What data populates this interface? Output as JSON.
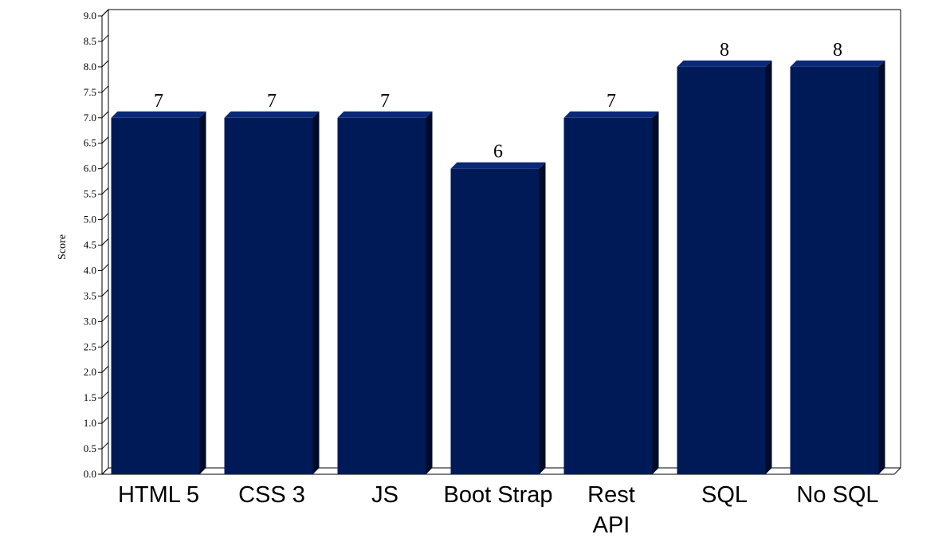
{
  "chart_data": {
    "type": "bar",
    "title": "",
    "xlabel": "",
    "ylabel": "Score",
    "categories": [
      "HTML 5",
      "CSS 3",
      "JS",
      "Boot Strap",
      "Rest API",
      "SQL",
      "No SQL"
    ],
    "category_lines": [
      [
        "HTML 5"
      ],
      [
        "CSS 3"
      ],
      [
        "JS"
      ],
      [
        "Boot Strap"
      ],
      [
        "Rest",
        "API"
      ],
      [
        "SQL"
      ],
      [
        "No SQL"
      ]
    ],
    "values": [
      7,
      7,
      7,
      6,
      7,
      8,
      8
    ],
    "data_labels": [
      "7",
      "7",
      "7",
      "6",
      "7",
      "8",
      "8"
    ],
    "ylim": [
      0,
      9
    ],
    "ytick_step": 0.5,
    "yticks": [
      "0.0",
      "0.5",
      "1.0",
      "1.5",
      "2.0",
      "2.5",
      "3.0",
      "3.5",
      "4.0",
      "4.5",
      "5.0",
      "5.5",
      "6.0",
      "6.5",
      "7.0",
      "7.5",
      "8.0",
      "8.5",
      "9.0"
    ],
    "grid": false,
    "legend": "none",
    "bar_style": "3d",
    "colors": {
      "bar_front": "#001a57",
      "bar_top": "#0a2a78",
      "bar_side": "#000b2a",
      "axis": "#000000"
    }
  }
}
